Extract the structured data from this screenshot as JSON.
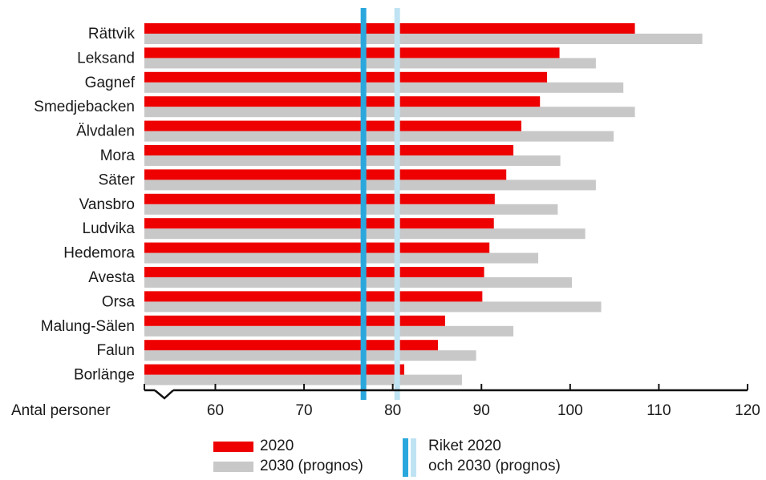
{
  "chart_data": {
    "type": "bar",
    "orientation": "horizontal",
    "categories": [
      "Rättvik",
      "Leksand",
      "Gagnef",
      "Smedjebacken",
      "Älvdalen",
      "Mora",
      "Säter",
      "Vansbro",
      "Ludvika",
      "Hedemora",
      "Avesta",
      "Orsa",
      "Malung-Sälen",
      "Falun",
      "Borlänge"
    ],
    "series": [
      {
        "name": "2020",
        "color": "#ee0000",
        "values": [
          107.3,
          98.8,
          97.4,
          96.6,
          94.5,
          93.6,
          92.8,
          91.5,
          91.4,
          90.9,
          90.3,
          90.1,
          85.9,
          85.1,
          81.3
        ]
      },
      {
        "name": "2030 (prognos)",
        "color": "#c8c8c8",
        "values": [
          114.9,
          102.9,
          106.0,
          107.3,
          104.9,
          98.9,
          102.9,
          98.6,
          101.7,
          96.4,
          100.2,
          103.5,
          93.6,
          89.4,
          87.8
        ]
      }
    ],
    "reference_lines": [
      {
        "name": "Riket 2020",
        "value": 76.7,
        "color": "#2aa7dc"
      },
      {
        "name": "2030 (prognos)",
        "value": 80.5,
        "color": "#bfe3f3"
      }
    ],
    "xlabel": "Antal personer",
    "xticks": [
      60,
      70,
      80,
      90,
      100,
      110,
      120
    ],
    "xlim": [
      52,
      120
    ],
    "axis_break": true
  },
  "legend": {
    "series_2020": "2020",
    "series_2030": "2030 (prognos)",
    "ref_line1": "Riket 2020",
    "ref_line2": "och 2030 (prognos)"
  }
}
